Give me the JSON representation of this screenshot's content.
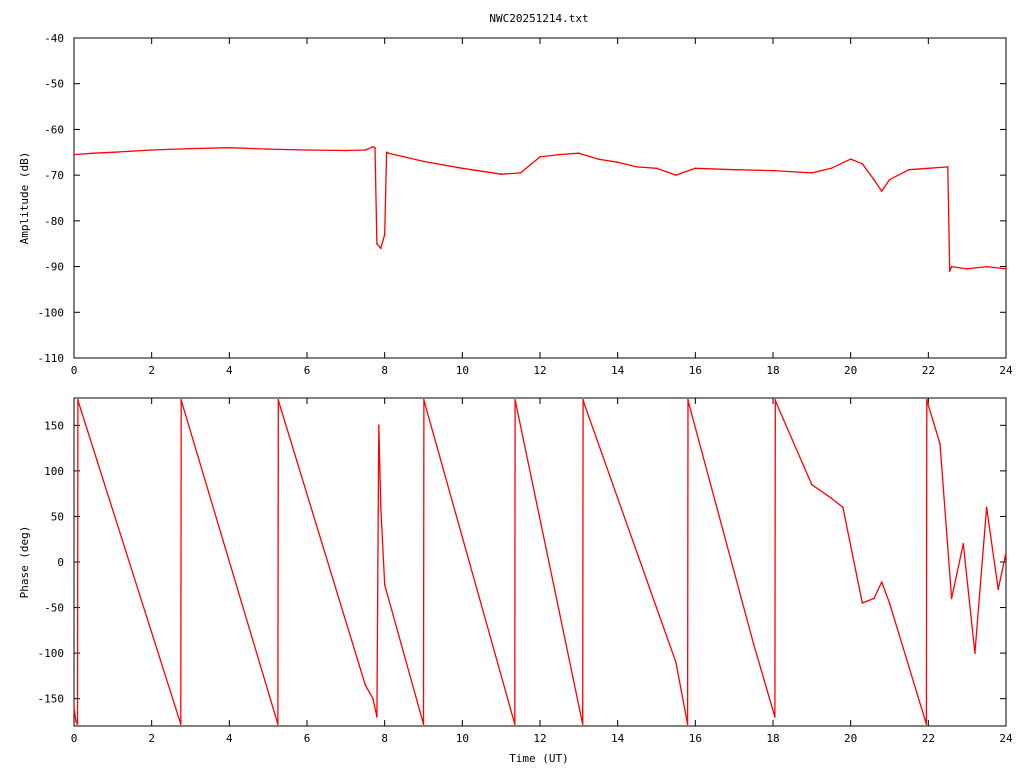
{
  "title": "NWC20251214.txt",
  "colors": {
    "series": "#ff0000",
    "axes": "#000000",
    "background": "#ffffff"
  },
  "chart_data": [
    {
      "type": "line",
      "ylabel": "Amplitude (dB)",
      "xlabel": "",
      "xlim": [
        0,
        24
      ],
      "ylim": [
        -110,
        -40
      ],
      "xticks": [
        0,
        2,
        4,
        6,
        8,
        10,
        12,
        14,
        16,
        18,
        20,
        22,
        24
      ],
      "yticks": [
        -110,
        -100,
        -90,
        -80,
        -70,
        -60,
        -50,
        -40
      ],
      "grid": false,
      "series": [
        {
          "x": [
            0,
            0.5,
            1,
            2,
            3,
            4,
            5,
            6,
            7,
            7.5,
            7.7,
            7.75,
            7.8,
            7.9,
            8.0,
            8.05,
            8.1,
            8.5,
            9,
            10,
            11,
            11.5,
            12,
            12.5,
            13,
            13.5,
            14,
            14.5,
            15,
            15.5,
            16,
            17,
            18,
            19,
            19.5,
            20,
            20.3,
            20.6,
            20.8,
            21,
            21.5,
            22,
            22.5,
            22.55,
            22.6,
            23,
            23.5,
            24
          ],
          "y": [
            -65.5,
            -65.2,
            -65,
            -64.5,
            -64.2,
            -64,
            -64.3,
            -64.5,
            -64.6,
            -64.5,
            -63.8,
            -64,
            -85,
            -86,
            -83,
            -65,
            -65.2,
            -66,
            -67,
            -68.5,
            -69.8,
            -69.5,
            -66,
            -65.5,
            -65.2,
            -66.5,
            -67.2,
            -68.2,
            -68.5,
            -70,
            -68.5,
            -68.8,
            -69,
            -69.5,
            -68.5,
            -66.5,
            -67.5,
            -71,
            -73.5,
            -71,
            -68.8,
            -68.5,
            -68.2,
            -91,
            -90,
            -90.5,
            -90,
            -90.5
          ]
        }
      ]
    },
    {
      "type": "line",
      "ylabel": "Phase (deg)",
      "xlabel": "Time (UT)",
      "xlim": [
        0,
        24
      ],
      "ylim": [
        -180,
        180
      ],
      "xticks": [
        0,
        2,
        4,
        6,
        8,
        10,
        12,
        14,
        16,
        18,
        20,
        22,
        24
      ],
      "yticks": [
        -150,
        -100,
        -50,
        0,
        50,
        100,
        150
      ],
      "grid": false,
      "series": [
        {
          "x": [
            0,
            0.05,
            0.09,
            0.1,
            0.11,
            2.75,
            2.76,
            2.77,
            5.25,
            5.26,
            5.27,
            7.5,
            7.7,
            7.8,
            7.85,
            7.9,
            8.0,
            9.0,
            9.01,
            9.02,
            11.35,
            11.36,
            11.37,
            13.1,
            13.11,
            13.12,
            14.0,
            15.0,
            15.5,
            15.8,
            15.81,
            15.82,
            17.5,
            18.05,
            18.06,
            18.07,
            19.0,
            19.5,
            19.8,
            20.3,
            20.6,
            20.8,
            21.0,
            21.95,
            21.96,
            21.97,
            22.3,
            22.6,
            22.9,
            23.2,
            23.5,
            23.8,
            24.0
          ],
          "y": [
            -160,
            -175,
            -178,
            178,
            176,
            -178,
            178,
            176,
            -178,
            178,
            176,
            -135,
            -150,
            -170,
            150,
            60,
            -25,
            -178,
            178,
            176,
            -178,
            178,
            176,
            -178,
            178,
            176,
            70,
            -50,
            -110,
            -178,
            178,
            176,
            -90,
            -170,
            178,
            176,
            85,
            70,
            60,
            -45,
            -40,
            -22,
            -45,
            -178,
            178,
            176,
            130,
            -40,
            20,
            -100,
            60,
            -30,
            10
          ]
        }
      ]
    }
  ]
}
